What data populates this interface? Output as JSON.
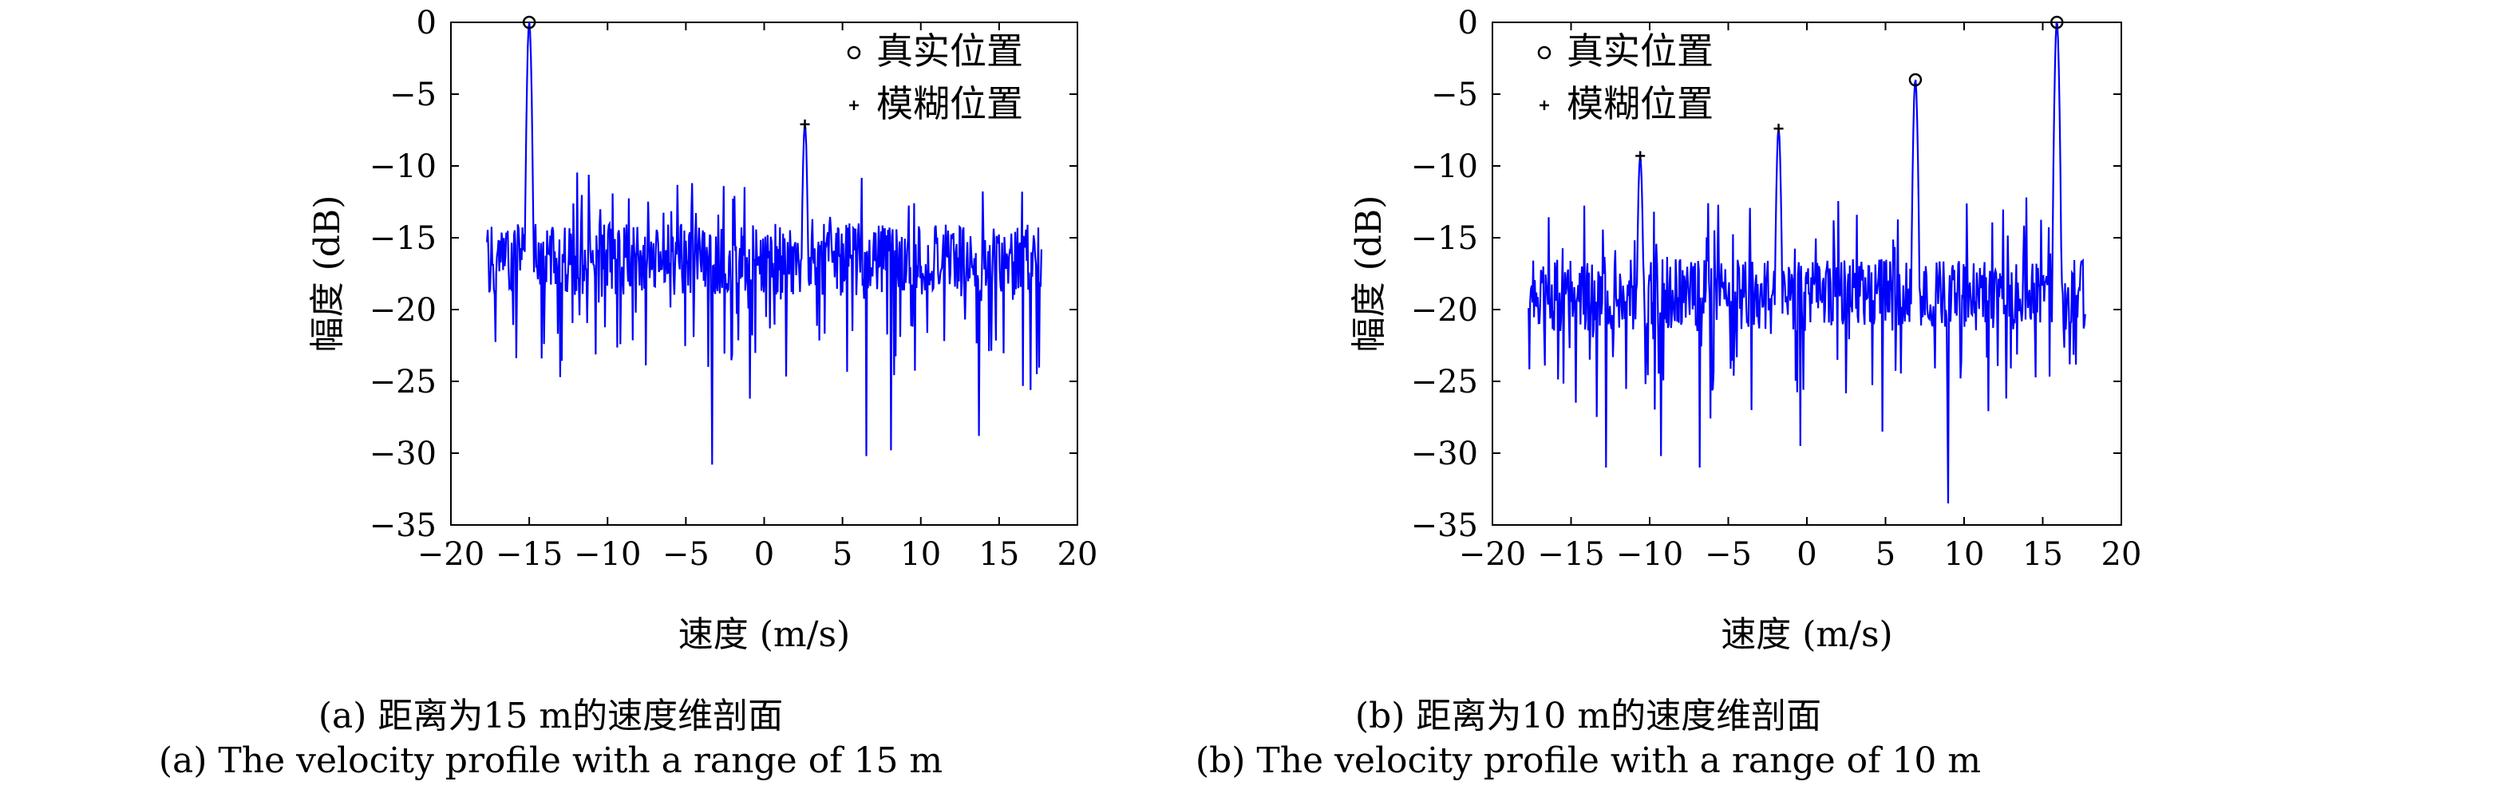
{
  "chart_data": [
    {
      "type": "line",
      "xlabel": "速度 (m/s)",
      "ylabel": "幅度 (dB)",
      "xlim": [
        -20,
        20
      ],
      "ylim": [
        -35,
        0
      ],
      "xticks": [
        -20,
        -15,
        -10,
        -5,
        0,
        5,
        10,
        15,
        20
      ],
      "yticks": [
        0,
        -5,
        -10,
        -15,
        -20,
        -25,
        -30,
        -35
      ],
      "xtick_labels": [
        "−20",
        "−15",
        "−10",
        "−5",
        "0",
        "5",
        "10",
        "15",
        "20"
      ],
      "ytick_labels": [
        "0",
        "−5",
        "−10",
        "−15",
        "−20",
        "−25",
        "−30",
        "−35"
      ],
      "grid": false,
      "legend_position": "top-right",
      "legend": [
        {
          "marker": "circle",
          "label": "真实位置"
        },
        {
          "marker": "plus",
          "label": "模糊位置"
        }
      ],
      "caption_cn": "(a) 距离为15 m的速度维剖面",
      "caption_en": "(a) The velocity profile with a range of 15 m",
      "series": [
        {
          "color": "#0000ff",
          "x_range": [
            -17.7,
            17.7
          ],
          "noise_floor_db": -16.5,
          "noise_spread_db": 2.5,
          "peaks": [
            {
              "x": -15.0,
              "y": 0
            },
            {
              "x": 2.6,
              "y": -7.1
            }
          ],
          "dips": [
            {
              "x": -3.3,
              "y": -30.8
            },
            {
              "x": 6.5,
              "y": -30.2
            },
            {
              "x": 8.1,
              "y": -29.8
            },
            {
              "x": 13.7,
              "y": -28.8
            },
            {
              "x": -13.0,
              "y": -24.7
            },
            {
              "x": -14.2,
              "y": -23.4
            },
            {
              "x": 17.0,
              "y": -25.6
            },
            {
              "x": 17.4,
              "y": -24.5
            },
            {
              "x": -0.9,
              "y": -26.2
            }
          ]
        }
      ],
      "markers": [
        {
          "type": "circle",
          "x": -15.0,
          "y": 0
        },
        {
          "type": "plus",
          "x": 2.6,
          "y": -7.1
        }
      ]
    },
    {
      "type": "line",
      "xlabel": "速度 (m/s)",
      "ylabel": "幅度 (dB)",
      "xlim": [
        -20,
        20
      ],
      "ylim": [
        -35,
        0
      ],
      "xticks": [
        -20,
        -15,
        -10,
        -5,
        0,
        5,
        10,
        15,
        20
      ],
      "yticks": [
        0,
        -5,
        -10,
        -15,
        -20,
        -25,
        -30,
        -35
      ],
      "xtick_labels": [
        "−20",
        "−15",
        "−10",
        "−5",
        "0",
        "5",
        "10",
        "15",
        "20"
      ],
      "ytick_labels": [
        "0",
        "−5",
        "−10",
        "−15",
        "−20",
        "−25",
        "−30",
        "−35"
      ],
      "grid": false,
      "legend_position": "top-left",
      "legend": [
        {
          "marker": "circle",
          "label": "真实位置"
        },
        {
          "marker": "plus",
          "label": "模糊位置"
        }
      ],
      "caption_cn": "(b) 距离为10 m的速度维剖面",
      "caption_en": "(b) The velocity profile with a range of 10 m",
      "series": [
        {
          "color": "#0000ff",
          "x_range": [
            -17.7,
            17.7
          ],
          "noise_floor_db": -19,
          "noise_spread_db": 2.5,
          "peaks": [
            {
              "x": -10.6,
              "y": -9.3
            },
            {
              "x": -1.8,
              "y": -7.4
            },
            {
              "x": 6.9,
              "y": -4.0
            },
            {
              "x": 15.9,
              "y": 0
            }
          ],
          "dips": [
            {
              "x": -12.8,
              "y": -31.0
            },
            {
              "x": -9.3,
              "y": -30.2
            },
            {
              "x": -6.8,
              "y": -31.0
            },
            {
              "x": 9.0,
              "y": -33.5
            },
            {
              "x": -0.4,
              "y": -29.5
            },
            {
              "x": 4.8,
              "y": -28.5
            },
            {
              "x": -3.5,
              "y": -27.0
            }
          ]
        }
      ],
      "markers": [
        {
          "type": "plus",
          "x": -10.6,
          "y": -9.3
        },
        {
          "type": "plus",
          "x": -1.8,
          "y": -7.4
        },
        {
          "type": "circle",
          "x": 6.9,
          "y": -4.0
        },
        {
          "type": "circle",
          "x": 15.9,
          "y": 0
        }
      ]
    }
  ]
}
